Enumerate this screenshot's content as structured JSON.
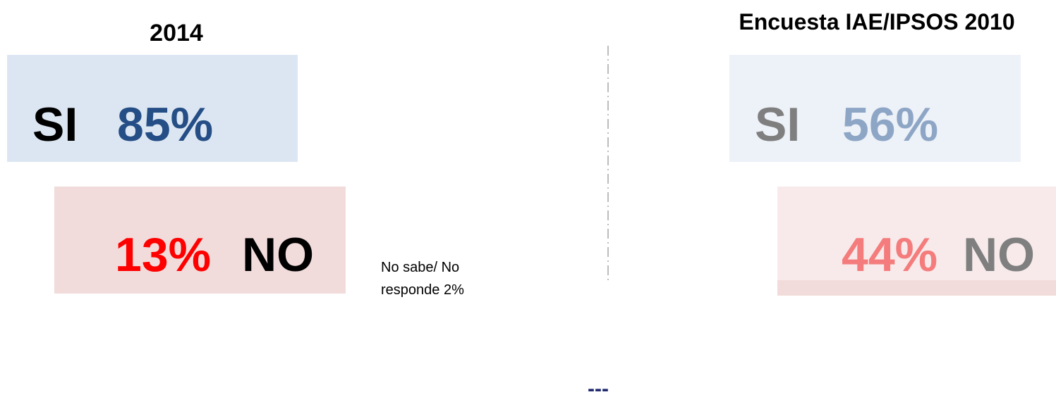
{
  "left": {
    "title": "2014",
    "yes_label": "SI",
    "yes_value": "85%",
    "no_value": "13%",
    "no_label": "NO",
    "note": [
      "No sabe/ No",
      "responde 2%"
    ]
  },
  "right": {
    "title": "Encuesta IAE/IPSOS 2010",
    "yes_label": "SI",
    "yes_value": "56%",
    "no_value": "44%",
    "no_label": "NO"
  },
  "footer": "---"
}
